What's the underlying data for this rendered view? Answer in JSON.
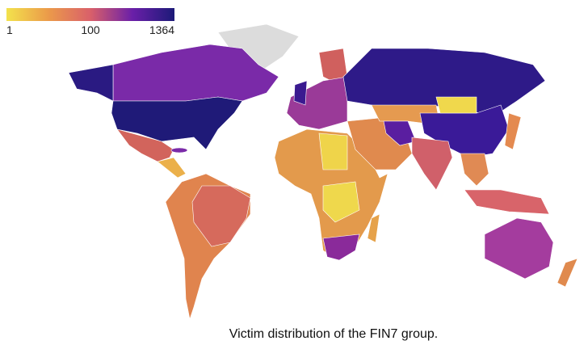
{
  "legend": {
    "ticks": [
      1,
      100,
      1364
    ],
    "colors": [
      "#f3e24c",
      "#eb9a4a",
      "#d9606a",
      "#6a1fa8",
      "#1c1a78"
    ]
  },
  "caption": "Victim distribution of the FIN7 group."
}
